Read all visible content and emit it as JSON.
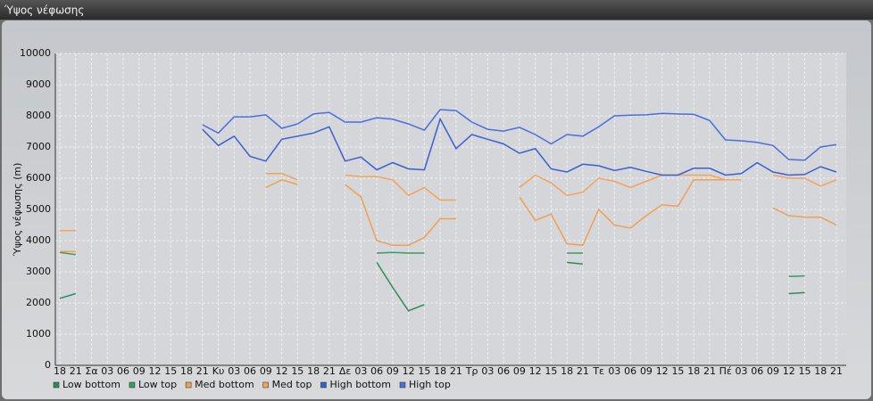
{
  "chart_data": {
    "type": "line",
    "title": "Ύψος νέφωσης",
    "y_label": "Ύψος νέφωσης (m)",
    "categories": [
      "18",
      "21",
      "Σα",
      "03",
      "06",
      "09",
      "12",
      "15",
      "18",
      "21",
      "Κυ",
      "03",
      "06",
      "09",
      "12",
      "15",
      "18",
      "21",
      "Δε",
      "03",
      "06",
      "09",
      "12",
      "15",
      "18",
      "21",
      "Τρ",
      "03",
      "06",
      "09",
      "12",
      "15",
      "18",
      "21",
      "Τε",
      "03",
      "06",
      "09",
      "12",
      "15",
      "18",
      "21",
      "Πέ",
      "03",
      "06",
      "09",
      "12",
      "15",
      "18",
      "21"
    ],
    "ylim": [
      0,
      10000
    ],
    "yticks": [
      0,
      1000,
      2000,
      3000,
      4000,
      5000,
      6000,
      7000,
      8000,
      9000,
      10000
    ],
    "grid": true,
    "series": [
      {
        "name": "Low bottom",
        "color": "#2e8b57",
        "values": [
          2150,
          2300,
          null,
          null,
          null,
          null,
          null,
          null,
          null,
          null,
          null,
          null,
          null,
          null,
          null,
          null,
          null,
          null,
          null,
          null,
          3300,
          2500,
          1750,
          1950,
          null,
          null,
          null,
          null,
          null,
          null,
          null,
          null,
          3300,
          3250,
          null,
          null,
          null,
          null,
          null,
          null,
          null,
          null,
          null,
          null,
          null,
          null,
          2300,
          2330,
          null,
          null
        ]
      },
      {
        "name": "Low top",
        "color": "#3a9a6a",
        "values": [
          3620,
          3550,
          null,
          null,
          null,
          null,
          null,
          null,
          null,
          null,
          null,
          null,
          null,
          null,
          null,
          null,
          null,
          null,
          null,
          null,
          3600,
          3620,
          3600,
          3600,
          null,
          null,
          null,
          null,
          null,
          null,
          null,
          null,
          3600,
          3600,
          null,
          null,
          null,
          null,
          null,
          null,
          null,
          null,
          null,
          null,
          null,
          null,
          2850,
          2870,
          null,
          null
        ]
      },
      {
        "name": "Med bottom",
        "color": "#f0a050",
        "values": [
          3650,
          3650,
          null,
          null,
          null,
          null,
          null,
          null,
          null,
          null,
          null,
          null,
          null,
          5700,
          5950,
          5800,
          null,
          null,
          5800,
          5400,
          4000,
          3850,
          3850,
          4100,
          4700,
          4700,
          null,
          null,
          null,
          5400,
          4650,
          4850,
          3900,
          3850,
          5000,
          4500,
          4400,
          4800,
          5150,
          5100,
          5950,
          5950,
          5950,
          5950,
          null,
          5050,
          4800,
          4750,
          4750,
          4500
        ]
      },
      {
        "name": "Med top",
        "color": "#f4a35a",
        "values": [
          4320,
          4320,
          null,
          null,
          null,
          null,
          null,
          null,
          null,
          null,
          null,
          null,
          null,
          6150,
          6150,
          5950,
          null,
          null,
          6100,
          6050,
          6050,
          5950,
          5450,
          5700,
          5300,
          5300,
          null,
          null,
          null,
          5700,
          6100,
          5850,
          5450,
          5550,
          6000,
          5900,
          5700,
          5900,
          6100,
          6100,
          6100,
          6100,
          5950,
          5950,
          null,
          6100,
          6000,
          6000,
          5750,
          5950
        ]
      },
      {
        "name": "High bottom",
        "color": "#3a5fd0",
        "values": [
          null,
          null,
          null,
          null,
          null,
          null,
          null,
          null,
          null,
          7570,
          7050,
          7350,
          6700,
          6550,
          7250,
          7350,
          7450,
          7650,
          6550,
          6680,
          6270,
          6500,
          6300,
          6270,
          7900,
          6950,
          7400,
          7250,
          7100,
          6800,
          6950,
          6300,
          6200,
          6450,
          6400,
          6250,
          6350,
          6220,
          6100,
          6100,
          6320,
          6320,
          6100,
          6150,
          6500,
          6200,
          6100,
          6120,
          6370,
          6200
        ]
      },
      {
        "name": "High top",
        "color": "#4a6ee0",
        "values": [
          null,
          null,
          null,
          null,
          null,
          null,
          null,
          null,
          null,
          7714,
          7450,
          7970,
          7970,
          8030,
          7600,
          7740,
          8060,
          8110,
          7800,
          7800,
          7940,
          7890,
          7740,
          7540,
          8200,
          8170,
          7800,
          7570,
          7510,
          7630,
          7400,
          7100,
          7400,
          7350,
          7650,
          8000,
          8020,
          8030,
          8080,
          8060,
          8050,
          7850,
          7230,
          7200,
          7150,
          7050,
          6600,
          6580,
          7000,
          7080
        ]
      }
    ]
  }
}
